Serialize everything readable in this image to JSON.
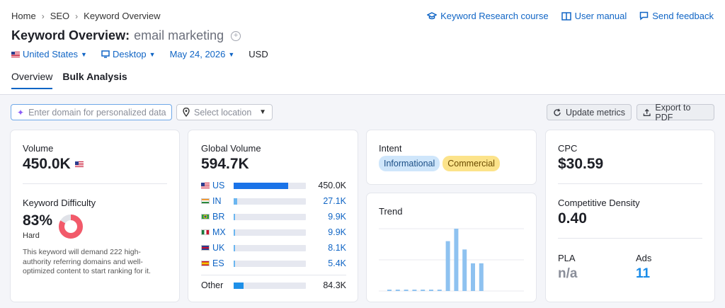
{
  "breadcrumb": [
    "Home",
    "SEO",
    "Keyword Overview"
  ],
  "top_links": {
    "course": "Keyword Research course",
    "manual": "User manual",
    "feedback": "Send feedback"
  },
  "title": {
    "main": "Keyword Overview:",
    "keyword": "email marketing"
  },
  "filters": {
    "country": "United States",
    "device": "Desktop",
    "date": "May 24, 2026",
    "currency": "USD"
  },
  "tabs": [
    "Overview",
    "Bulk Analysis"
  ],
  "toolbar": {
    "domain_placeholder": "Enter domain for personalized data",
    "location_placeholder": "Select location",
    "update": "Update metrics",
    "export": "Export to PDF"
  },
  "volume": {
    "label": "Volume",
    "value": "450.0K"
  },
  "kd": {
    "label": "Keyword Difficulty",
    "value": "83%",
    "level": "Hard",
    "percent": 83,
    "description": "This keyword will demand 222 high-authority referring domains and well-optimized content to start ranking for it."
  },
  "global": {
    "label": "Global Volume",
    "value": "594.7K",
    "rows": [
      {
        "code": "US",
        "value": "450.0K",
        "share": 0.757
      },
      {
        "code": "IN",
        "value": "27.1K",
        "share": 0.046
      },
      {
        "code": "BR",
        "value": "9.9K",
        "share": 0.017
      },
      {
        "code": "MX",
        "value": "9.9K",
        "share": 0.017
      },
      {
        "code": "UK",
        "value": "8.1K",
        "share": 0.014
      },
      {
        "code": "ES",
        "value": "5.4K",
        "share": 0.009
      }
    ],
    "other": {
      "label": "Other",
      "value": "84.3K",
      "share": 0.142
    }
  },
  "intent": {
    "label": "Intent",
    "tags": [
      "Informational",
      "Commercial"
    ]
  },
  "trend": {
    "label": "Trend",
    "values": [
      2,
      2,
      2,
      2,
      2,
      2,
      2,
      72,
      90,
      60,
      40,
      40
    ],
    "max": 90
  },
  "cpc": {
    "label": "CPC",
    "value": "$30.59"
  },
  "density": {
    "label": "Competitive Density",
    "value": "0.40"
  },
  "pla": {
    "label": "PLA",
    "value": "n/a"
  },
  "ads": {
    "label": "Ads",
    "value": "11"
  },
  "colors": {
    "accent": "#1065c5",
    "bar": "#1a73e8",
    "trend_bar": "#8ec2f0",
    "kd_red": "#f25a6a"
  }
}
